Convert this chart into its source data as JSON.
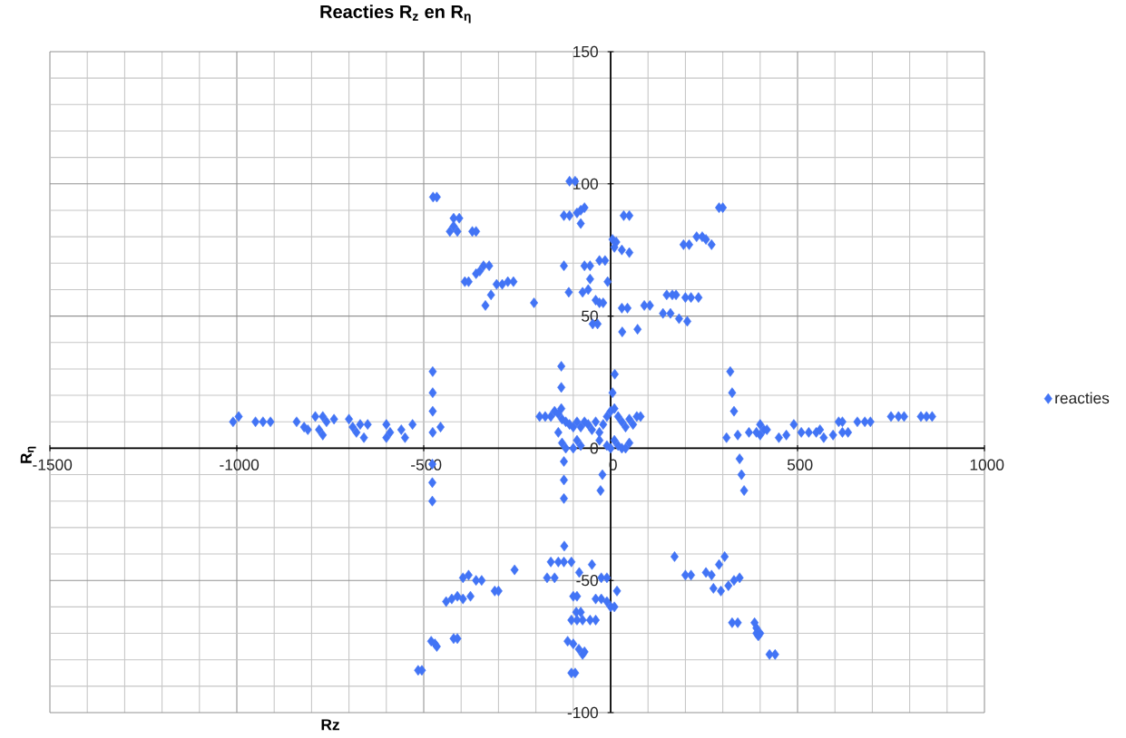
{
  "chart_data": {
    "type": "scatter",
    "title": "Reacties R$_{z}$ en R$_{η}$",
    "xlabel": "Rz",
    "ylabel": "R$_{η}$",
    "xlim": [
      -1500,
      1000
    ],
    "ylim": [
      -100,
      150
    ],
    "xticks": [
      -1500,
      -1000,
      -500,
      0,
      500,
      1000
    ],
    "yticks": [
      -100,
      -50,
      0,
      50,
      100,
      150
    ],
    "grid": true,
    "legend": "right",
    "marker": "diamond",
    "series": [
      {
        "name": "reacties",
        "color": "#4274f5",
        "x": [
          -1010,
          -995,
          -950,
          -930,
          -910,
          -840,
          -820,
          -810,
          -790,
          -770,
          -760,
          -740,
          -780,
          -770,
          -700,
          -690,
          -670,
          -650,
          -660,
          -680,
          -600,
          -590,
          -600,
          -560,
          -550,
          -530,
          -476,
          -476,
          -476,
          -476,
          -455,
          -475,
          -465,
          -420,
          -405,
          -420,
          -430,
          -410,
          -370,
          -360,
          -340,
          -325,
          -360,
          -350,
          -390,
          -380,
          -305,
          -290,
          -275,
          -260,
          -320,
          -335,
          -205,
          -110,
          -95,
          -125,
          -110,
          -90,
          -80,
          -70,
          -80,
          5,
          15,
          10,
          30,
          50,
          35,
          50,
          -125,
          -70,
          -55,
          -30,
          -15,
          -8,
          -55,
          -75,
          -60,
          -112,
          -40,
          -30,
          -20,
          -48,
          -35,
          30,
          45,
          31,
          72,
          90,
          105,
          150,
          165,
          175,
          200,
          215,
          235,
          140,
          160,
          183,
          205,
          195,
          210,
          230,
          245,
          255,
          270,
          290,
          300,
          320,
          325,
          330,
          310,
          340,
          370,
          390,
          400,
          400,
          410,
          418,
          450,
          470,
          490,
          510,
          530,
          550,
          560,
          570,
          595,
          620,
          635,
          610,
          620,
          660,
          680,
          695,
          750,
          770,
          785,
          830,
          845,
          860,
          345,
          350,
          357,
          171,
          200,
          215,
          255,
          270,
          290,
          305,
          275,
          295,
          315,
          330,
          345,
          325,
          340,
          385,
          390,
          390,
          400,
          395,
          425,
          440,
          -257,
          -124,
          -160,
          -140,
          -125,
          -105,
          -170,
          -150,
          -84,
          -50,
          -100,
          -90,
          -40,
          -25,
          -10,
          -25,
          -10,
          17,
          0,
          10,
          -92,
          -80,
          -105,
          -90,
          -75,
          -55,
          -40,
          -115,
          -100,
          -85,
          -75,
          -70,
          -105,
          -95,
          -132,
          -132,
          -132,
          11,
          5,
          -125,
          -125,
          -125,
          -22,
          -27,
          -477,
          -477,
          -477,
          -395,
          -380,
          -360,
          -345,
          -310,
          -300,
          -440,
          -425,
          -410,
          -395,
          -375,
          -480,
          -470,
          -465,
          -420,
          -410,
          -515,
          -505,
          -190,
          -175,
          -160,
          -150,
          -140,
          -130,
          -120,
          -110,
          -100,
          -90,
          -80,
          -70,
          -60,
          -50,
          -40,
          -30,
          -20,
          -10,
          0,
          10,
          20,
          30,
          40,
          50,
          60,
          70,
          80,
          -140,
          -130,
          -120,
          -100,
          -90,
          -80,
          -30,
          -10,
          0,
          10,
          20,
          30,
          40,
          50
        ],
        "values": [
          10,
          12,
          10,
          10,
          10,
          10,
          8,
          7,
          12,
          12,
          10,
          11,
          7,
          5,
          11,
          8,
          9,
          9,
          4,
          6,
          9,
          6,
          4,
          7,
          4,
          9,
          29,
          21,
          14,
          6,
          8,
          95,
          95,
          87,
          87,
          84,
          82,
          82,
          82,
          82,
          69,
          69,
          66,
          67,
          63,
          63,
          62,
          62,
          63,
          63,
          58,
          54,
          55,
          101,
          101,
          88,
          88,
          89,
          90,
          91,
          85,
          79,
          78,
          76,
          75,
          74,
          88,
          88,
          69,
          69,
          69,
          71,
          71,
          63,
          64,
          59,
          60,
          59,
          56,
          55,
          55,
          47,
          47,
          53,
          53,
          44,
          45,
          54,
          54,
          58,
          58,
          58,
          57,
          57,
          57,
          51,
          51,
          49,
          48,
          77,
          77,
          80,
          80,
          79,
          77,
          91,
          91,
          29,
          21,
          14,
          4,
          5,
          6,
          6,
          9,
          5,
          7,
          7,
          4,
          5,
          9,
          6,
          6,
          6,
          7,
          4,
          5,
          6,
          6,
          10,
          10,
          10,
          10,
          10,
          12,
          12,
          12,
          12,
          12,
          12,
          -4,
          -10,
          -16,
          -41,
          -48,
          -48,
          -47,
          -48,
          -44,
          -41,
          -53,
          -54,
          -52,
          -50,
          -49,
          -66,
          -66,
          -66,
          -68,
          -70,
          -70,
          -71,
          -78,
          -78,
          -46,
          -37,
          -43,
          -43,
          -43,
          -43,
          -49,
          -49,
          -47,
          -44,
          -56,
          -56,
          -57,
          -57,
          -58,
          -49,
          -49,
          -54,
          -60,
          -60,
          -62,
          -62,
          -65,
          -65,
          -65,
          -65,
          -65,
          -73,
          -74,
          -76,
          -78,
          -77,
          -85,
          -85,
          31,
          23,
          15,
          28,
          21,
          -5,
          -12,
          -19,
          -10,
          -16,
          -6,
          -13,
          -20,
          -49,
          -48,
          -50,
          -50,
          -54,
          -54,
          -58,
          -57,
          -56,
          -57,
          -56,
          -73,
          -74,
          -75,
          -72,
          -72,
          -84,
          -84,
          12,
          12,
          12,
          14,
          13,
          11,
          10,
          9,
          8,
          10,
          8,
          10,
          9,
          7,
          10,
          6,
          9,
          12,
          14,
          15,
          12,
          10,
          8,
          11,
          9,
          12,
          12,
          6,
          2,
          0,
          0,
          3,
          1,
          3,
          1,
          0,
          3,
          1,
          0,
          0,
          2
        ]
      }
    ]
  }
}
